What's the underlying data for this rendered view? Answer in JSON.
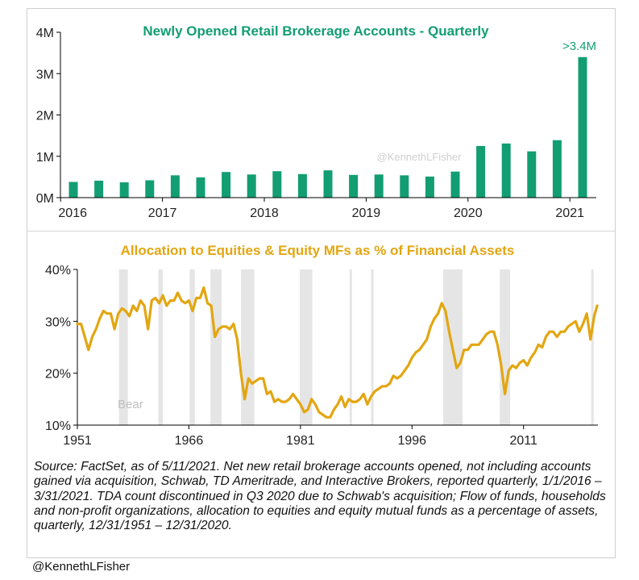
{
  "chart_data": [
    {
      "type": "bar",
      "title": "Newly Opened Retail Brokerage Accounts - Quarterly",
      "title_color": "#129e72",
      "bar_color": "#129e72",
      "ylabel": "",
      "ylim": [
        0,
        4000000
      ],
      "y_ticks": [
        {
          "value": 0,
          "label": "0M"
        },
        {
          "value": 1000000,
          "label": "1M"
        },
        {
          "value": 2000000,
          "label": "2M"
        },
        {
          "value": 3000000,
          "label": "3M"
        },
        {
          "value": 4000000,
          "label": "4M"
        }
      ],
      "x_ticks": [
        "2016",
        "2017",
        "2018",
        "2019",
        "2020",
        "2021"
      ],
      "categories": [
        "Q1 2016",
        "Q2 2016",
        "Q3 2016",
        "Q4 2016",
        "Q1 2017",
        "Q2 2017",
        "Q3 2017",
        "Q4 2017",
        "Q1 2018",
        "Q2 2018",
        "Q3 2018",
        "Q4 2018",
        "Q1 2019",
        "Q2 2019",
        "Q3 2019",
        "Q4 2019",
        "Q1 2020",
        "Q2 2020",
        "Q3 2020",
        "Q4 2020",
        "Q1 2021"
      ],
      "values": [
        380000,
        410000,
        370000,
        420000,
        540000,
        490000,
        620000,
        560000,
        640000,
        570000,
        660000,
        550000,
        560000,
        540000,
        510000,
        630000,
        1250000,
        1310000,
        1120000,
        1390000,
        3400000
      ],
      "annotation": ">3.4M",
      "watermark": "@KennethLFisher"
    },
    {
      "type": "line",
      "title": "Allocation to Equities & Equity MFs as % of Financial Assets",
      "title_color": "#e2a611",
      "line_color": "#e2a611",
      "ylim": [
        10,
        40
      ],
      "y_ticks": [
        {
          "value": 10,
          "label": "10%"
        },
        {
          "value": 20,
          "label": "20%"
        },
        {
          "value": 30,
          "label": "30%"
        },
        {
          "value": 40,
          "label": "40%"
        }
      ],
      "xlim": [
        1951,
        2021
      ],
      "x_ticks": [
        "1951",
        "1966",
        "1981",
        "1996",
        "2011"
      ],
      "x_tick_values": [
        1951,
        1966,
        1981,
        1996,
        2011
      ],
      "bear_label": "Bear",
      "bear_markets": [
        [
          1956.6,
          1957.8
        ],
        [
          1961.9,
          1962.5
        ],
        [
          1966.1,
          1966.8
        ],
        [
          1968.9,
          1970.4
        ],
        [
          1973.0,
          1974.8
        ],
        [
          1980.9,
          1982.6
        ],
        [
          1987.6,
          1987.9
        ],
        [
          1990.5,
          1990.8
        ],
        [
          2000.2,
          2002.8
        ],
        [
          2007.8,
          2009.2
        ],
        [
          2020.1,
          2020.3
        ]
      ],
      "x": [
        1951.0,
        1951.5,
        1952.0,
        1952.5,
        1953.0,
        1953.5,
        1954.0,
        1954.5,
        1955.0,
        1955.5,
        1956.0,
        1956.5,
        1957.0,
        1957.5,
        1958.0,
        1958.5,
        1959.0,
        1959.5,
        1960.0,
        1960.5,
        1961.0,
        1961.5,
        1962.0,
        1962.5,
        1963.0,
        1963.5,
        1964.0,
        1964.5,
        1965.0,
        1965.5,
        1966.0,
        1966.5,
        1967.0,
        1967.5,
        1968.0,
        1968.5,
        1969.0,
        1969.5,
        1970.0,
        1970.5,
        1971.0,
        1971.5,
        1972.0,
        1972.5,
        1973.0,
        1973.5,
        1974.0,
        1974.5,
        1975.0,
        1975.5,
        1976.0,
        1976.5,
        1977.0,
        1977.5,
        1978.0,
        1978.5,
        1979.0,
        1979.5,
        1980.0,
        1980.5,
        1981.0,
        1981.5,
        1982.0,
        1982.5,
        1983.0,
        1983.5,
        1984.0,
        1984.5,
        1985.0,
        1985.5,
        1986.0,
        1986.5,
        1987.0,
        1987.5,
        1988.0,
        1988.5,
        1989.0,
        1989.5,
        1990.0,
        1990.5,
        1991.0,
        1991.5,
        1992.0,
        1992.5,
        1993.0,
        1993.5,
        1994.0,
        1994.5,
        1995.0,
        1995.5,
        1996.0,
        1996.5,
        1997.0,
        1997.5,
        1998.0,
        1998.5,
        1999.0,
        1999.5,
        2000.0,
        2000.5,
        2001.0,
        2001.5,
        2002.0,
        2002.5,
        2003.0,
        2003.5,
        2004.0,
        2004.5,
        2005.0,
        2005.5,
        2006.0,
        2006.5,
        2007.0,
        2007.5,
        2008.0,
        2008.5,
        2009.0,
        2009.5,
        2010.0,
        2010.5,
        2011.0,
        2011.5,
        2012.0,
        2012.5,
        2013.0,
        2013.5,
        2014.0,
        2014.5,
        2015.0,
        2015.5,
        2016.0,
        2016.5,
        2017.0,
        2017.5,
        2018.0,
        2018.5,
        2019.0,
        2019.5,
        2020.0,
        2020.5,
        2020.9
      ],
      "values": [
        29.5,
        29.5,
        27.0,
        24.5,
        27.0,
        28.5,
        30.5,
        32.0,
        31.5,
        31.5,
        28.5,
        31.5,
        32.5,
        32.0,
        31.0,
        33.0,
        32.0,
        34.0,
        33.0,
        28.5,
        34.0,
        34.5,
        33.5,
        35.0,
        33.0,
        34.0,
        34.0,
        35.5,
        34.0,
        33.5,
        34.0,
        32.0,
        34.5,
        34.5,
        36.5,
        33.5,
        33.0,
        27.0,
        28.5,
        29.0,
        29.0,
        28.5,
        29.5,
        26.5,
        20.0,
        15.0,
        19.0,
        18.0,
        18.5,
        19.0,
        19.0,
        16.0,
        16.5,
        14.5,
        15.0,
        14.5,
        14.5,
        15.0,
        16.0,
        15.0,
        14.0,
        12.5,
        13.0,
        15.0,
        14.0,
        12.5,
        12.0,
        11.5,
        11.5,
        13.0,
        14.0,
        15.5,
        13.5,
        15.0,
        14.5,
        14.5,
        15.0,
        16.0,
        14.0,
        15.5,
        16.5,
        17.0,
        17.5,
        17.5,
        18.0,
        19.5,
        19.0,
        19.5,
        20.5,
        21.5,
        23.0,
        24.0,
        24.5,
        25.5,
        26.5,
        29.0,
        30.5,
        31.5,
        33.5,
        32.0,
        28.0,
        24.5,
        21.0,
        22.0,
        24.5,
        24.5,
        25.5,
        25.5,
        25.5,
        26.5,
        27.5,
        28.0,
        28.0,
        25.5,
        21.5,
        16.0,
        20.5,
        21.5,
        21.0,
        22.0,
        22.5,
        21.5,
        23.0,
        24.0,
        25.5,
        25.0,
        27.0,
        28.0,
        28.0,
        27.0,
        28.0,
        28.0,
        29.0,
        29.5,
        30.0,
        28.0,
        29.5,
        31.5,
        26.5,
        31.0,
        33.0
      ]
    }
  ],
  "source_text": "Source: FactSet, as of 5/11/2021. Net new retail brokerage accounts opened, not including accounts gained via acquisition, Schwab, TD Ameritrade, and Interactive Brokers, reported quarterly, 1/1/2016 – 3/31/2021. TDA count discontinued in Q3 2020 due to Schwab's acquisition; Flow of funds, households and non-profit organizations, allocation to equities and equity mutual funds as a percentage of assets, quarterly, 12/31/1951 – 12/31/2020.",
  "footer_handle": "@KennethLFisher"
}
